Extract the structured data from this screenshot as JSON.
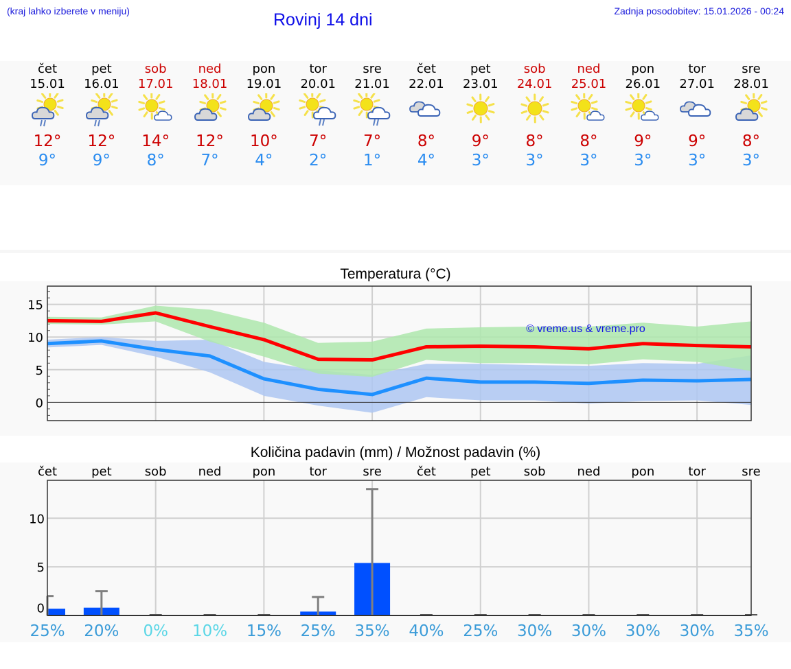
{
  "header": {
    "menu_hint": "(kraj lahko izberete v meniju)",
    "title": "Rovinj 14 dni",
    "last_update": "Zadnja posodobitev: 15.01.2026 - 00:24"
  },
  "colors": {
    "max_temp": "#cc0000",
    "min_temp": "#2a8cf0",
    "max_line": "#ff0000",
    "min_line": "#1e90ff",
    "max_band": "#aee8ad",
    "min_band": "#aec7f2",
    "bar": "#0050ff",
    "pct_normal": "#3a9bd8",
    "pct_low": "#5ad6e6",
    "header_blue": "#1a1adb"
  },
  "days": [
    {
      "name": "čet",
      "date": "15.01",
      "weekend": false,
      "icon": "partly-cloudy-rain-icon",
      "tmax": "12°",
      "tmin": "9°"
    },
    {
      "name": "pet",
      "date": "16.01",
      "weekend": false,
      "icon": "partly-cloudy-rain-icon",
      "tmax": "12°",
      "tmin": "9°"
    },
    {
      "name": "sob",
      "date": "17.01",
      "weekend": true,
      "icon": "sun-small-cloud-icon",
      "tmax": "14°",
      "tmin": "8°"
    },
    {
      "name": "ned",
      "date": "18.01",
      "weekend": true,
      "icon": "partly-cloudy-icon",
      "tmax": "12°",
      "tmin": "7°"
    },
    {
      "name": "pon",
      "date": "19.01",
      "weekend": false,
      "icon": "partly-cloudy-icon",
      "tmax": "10°",
      "tmin": "4°"
    },
    {
      "name": "tor",
      "date": "20.01",
      "weekend": false,
      "icon": "sun-cloud-rain-icon",
      "tmax": "7°",
      "tmin": "2°"
    },
    {
      "name": "sre",
      "date": "21.01",
      "weekend": false,
      "icon": "sun-cloud-rain-icon",
      "tmax": "7°",
      "tmin": "1°"
    },
    {
      "name": "čet",
      "date": "22.01",
      "weekend": false,
      "icon": "cloudy-icon",
      "tmax": "8°",
      "tmin": "4°"
    },
    {
      "name": "pet",
      "date": "23.01",
      "weekend": false,
      "icon": "sun-icon",
      "tmax": "9°",
      "tmin": "3°"
    },
    {
      "name": "sob",
      "date": "24.01",
      "weekend": true,
      "icon": "sun-icon",
      "tmax": "8°",
      "tmin": "3°"
    },
    {
      "name": "ned",
      "date": "25.01",
      "weekend": true,
      "icon": "sun-small-cloud-icon",
      "tmax": "8°",
      "tmin": "3°"
    },
    {
      "name": "pon",
      "date": "26.01",
      "weekend": false,
      "icon": "sun-small-cloud-icon",
      "tmax": "9°",
      "tmin": "3°"
    },
    {
      "name": "tor",
      "date": "27.01",
      "weekend": false,
      "icon": "cloudy-icon",
      "tmax": "9°",
      "tmin": "3°"
    },
    {
      "name": "sre",
      "date": "28.01",
      "weekend": false,
      "icon": "partly-cloudy-icon",
      "tmax": "8°",
      "tmin": "3°"
    }
  ],
  "temp_chart": {
    "title": "Temperatura (°C)",
    "watermark": "© vreme.us & vreme.pro",
    "yticks": [
      "15",
      "10",
      "5",
      "0"
    ]
  },
  "precip_chart": {
    "title": "Količina padavin (mm) / Možnost padavin (%)",
    "yticks": [
      "10",
      "5",
      "0"
    ],
    "day_labels": [
      "čet",
      "pet",
      "sob",
      "ned",
      "pon",
      "tor",
      "sre",
      "čet",
      "pet",
      "sob",
      "ned",
      "pon",
      "tor",
      "sre"
    ],
    "percents": [
      "25%",
      "20%",
      "0%",
      "10%",
      "15%",
      "25%",
      "35%",
      "40%",
      "25%",
      "30%",
      "30%",
      "30%",
      "30%",
      "35%"
    ]
  },
  "chart_data": [
    {
      "type": "line",
      "title": "Temperatura (°C)",
      "x": [
        "15.01",
        "16.01",
        "17.01",
        "18.01",
        "19.01",
        "20.01",
        "21.01",
        "22.01",
        "23.01",
        "24.01",
        "25.01",
        "26.01",
        "27.01",
        "28.01"
      ],
      "series": [
        {
          "name": "max",
          "values": [
            12.5,
            12.4,
            13.7,
            11.6,
            9.6,
            6.6,
            6.5,
            8.5,
            8.6,
            8.5,
            8.2,
            9.0,
            8.7,
            8.5
          ]
        },
        {
          "name": "max_range_upper",
          "values": [
            13.1,
            13.0,
            14.8,
            14.2,
            12.2,
            9.1,
            9.3,
            11.3,
            11.5,
            11.6,
            11.6,
            12.2,
            11.6,
            12.4
          ]
        },
        {
          "name": "max_range_lower",
          "values": [
            12.0,
            11.9,
            12.4,
            9.3,
            7.0,
            4.4,
            3.9,
            6.5,
            6.0,
            6.0,
            5.8,
            6.6,
            6.2,
            4.8
          ]
        },
        {
          "name": "min",
          "values": [
            9.0,
            9.4,
            8.1,
            7.1,
            3.6,
            2.0,
            1.2,
            3.7,
            3.1,
            3.1,
            2.9,
            3.4,
            3.3,
            3.5
          ]
        },
        {
          "name": "min_range_upper",
          "values": [
            9.6,
            10.0,
            9.4,
            9.6,
            6.2,
            4.9,
            4.2,
            5.9,
            5.9,
            5.7,
            5.6,
            6.0,
            5.9,
            7.2
          ]
        },
        {
          "name": "min_range_lower",
          "values": [
            8.4,
            8.8,
            7.0,
            4.6,
            1.0,
            -0.5,
            -1.6,
            0.8,
            0.3,
            0.3,
            -0.2,
            0.2,
            0.3,
            -0.4
          ]
        }
      ],
      "xlabel": "",
      "ylabel": "°C",
      "ylim": [
        -2.8,
        17.8
      ],
      "grid": true,
      "annotations": [
        "© vreme.us & vreme.pro"
      ]
    },
    {
      "type": "bar",
      "title": "Količina padavin (mm) / Možnost padavin (%)",
      "categories": [
        "čet",
        "pet",
        "sob",
        "ned",
        "pon",
        "tor",
        "sre",
        "čet",
        "pet",
        "sob",
        "ned",
        "pon",
        "tor",
        "sre"
      ],
      "series": [
        {
          "name": "precipitation_mm",
          "values": [
            0.7,
            0.8,
            0,
            0,
            0,
            0.4,
            5.4,
            0,
            0,
            0,
            0,
            0,
            0,
            0
          ]
        },
        {
          "name": "precipitation_max_mm",
          "values": [
            2.0,
            2.5,
            0,
            0,
            0,
            1.9,
            13.0,
            0,
            0,
            0,
            0,
            0,
            0,
            0
          ]
        },
        {
          "name": "probability_pct",
          "values": [
            25,
            20,
            0,
            10,
            15,
            25,
            35,
            40,
            25,
            30,
            30,
            30,
            30,
            35
          ]
        }
      ],
      "xlabel": "",
      "ylabel": "mm",
      "ylim": [
        0,
        13.9
      ],
      "grid": true
    }
  ]
}
